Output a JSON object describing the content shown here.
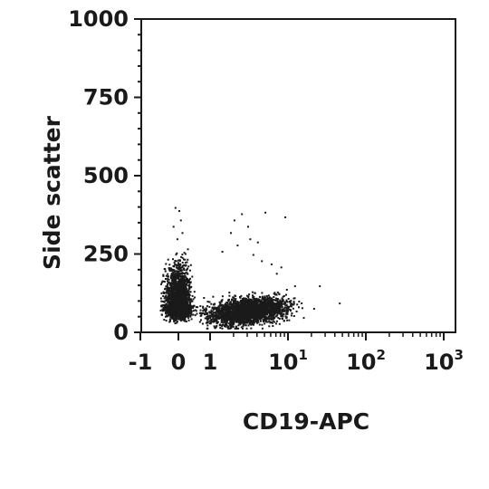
{
  "chart_data": {
    "type": "scatter",
    "title": "",
    "xlabel": "CD19-APC",
    "ylabel": "Side scatter",
    "x_scale": "biexponential",
    "x_ticks": [
      {
        "value": -1,
        "base": "-1",
        "exp": ""
      },
      {
        "value": 0,
        "base": "0",
        "exp": ""
      },
      {
        "value": 1,
        "base": "1",
        "exp": ""
      },
      {
        "value": 10,
        "base": "10",
        "exp": "1"
      },
      {
        "value": 100,
        "base": "10",
        "exp": "2"
      },
      {
        "value": 1000,
        "base": "10",
        "exp": "3"
      }
    ],
    "y_ticks": [
      "0",
      "250",
      "500",
      "750",
      "1000"
    ],
    "ylim": [
      0,
      1000
    ],
    "xlim": [
      -1,
      1000
    ],
    "grid": false,
    "legend": "none",
    "point_color": "#1a1a1a",
    "populations": [
      {
        "name": "",
        "x_center": 0,
        "x_spread": 0.25,
        "y_center": 90,
        "y_spread": 70,
        "count": 2600
      },
      {
        "name": "",
        "x_center": 3,
        "x_spread": 0.5,
        "y_center": 60,
        "y_spread": 30,
        "count": 2400
      }
    ],
    "scattered_points": [
      {
        "x": -0.1,
        "y": 400
      },
      {
        "x": 0.0,
        "y": 390
      },
      {
        "x": 0.05,
        "y": 360
      },
      {
        "x": -0.15,
        "y": 340
      },
      {
        "x": 0.1,
        "y": 320
      },
      {
        "x": -0.05,
        "y": 300
      },
      {
        "x": 2.0,
        "y": 360
      },
      {
        "x": 2.5,
        "y": 380
      },
      {
        "x": 3.0,
        "y": 340
      },
      {
        "x": 1.8,
        "y": 320
      },
      {
        "x": 4.0,
        "y": 290
      },
      {
        "x": 3.5,
        "y": 250
      },
      {
        "x": 5.0,
        "y": 385
      },
      {
        "x": 9.0,
        "y": 370
      },
      {
        "x": 2.2,
        "y": 280
      },
      {
        "x": 6.0,
        "y": 220
      },
      {
        "x": 7.0,
        "y": 190
      },
      {
        "x": 12.0,
        "y": 150
      },
      {
        "x": 25.0,
        "y": 150
      },
      {
        "x": 45.0,
        "y": 95
      },
      {
        "x": 1.4,
        "y": 260
      },
      {
        "x": 3.2,
        "y": 300
      },
      {
        "x": 4.5,
        "y": 230
      },
      {
        "x": 8.0,
        "y": 210
      }
    ]
  }
}
